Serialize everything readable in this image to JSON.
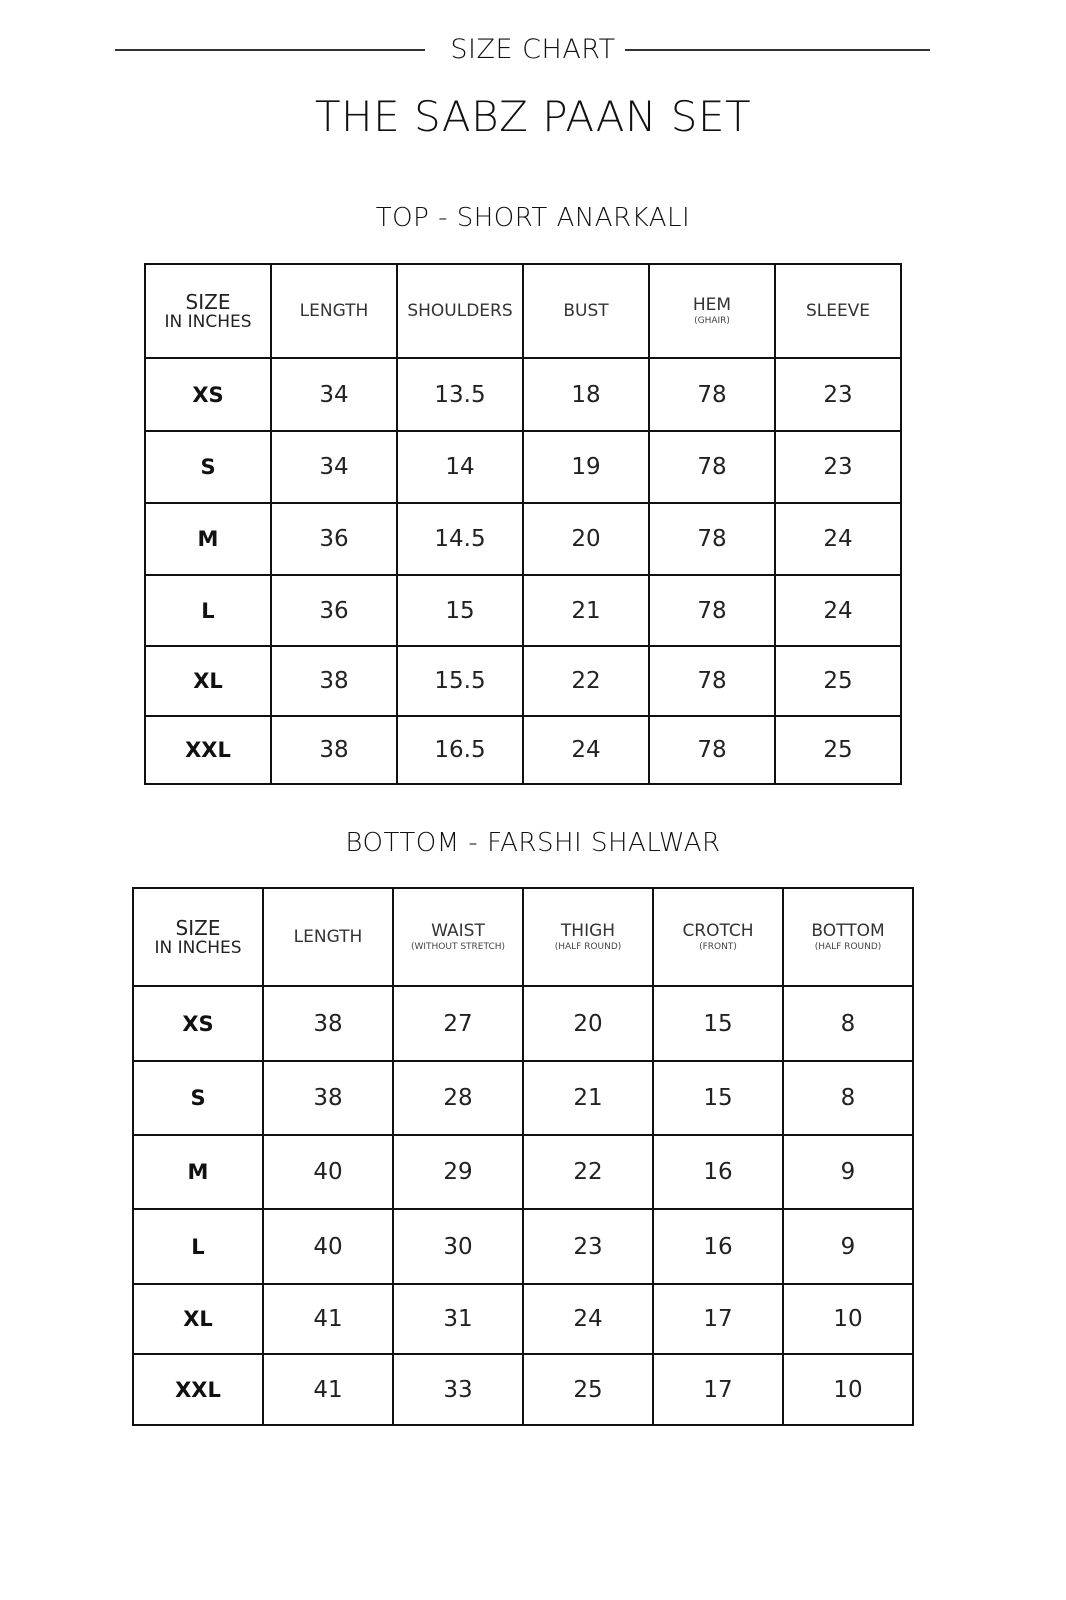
{
  "header": {
    "label": "SIZE CHART",
    "title": "THE SABZ PAAN SET"
  },
  "tables": [
    {
      "title": "TOP - SHORT ANARKALI",
      "size_header": "SIZE",
      "size_sub": "IN INCHES",
      "columns": [
        {
          "label": "LENGTH",
          "sub": ""
        },
        {
          "label": "SHOULDERS",
          "sub": ""
        },
        {
          "label": "BUST",
          "sub": ""
        },
        {
          "label": "HEM",
          "sub": "(GHAIR)"
        },
        {
          "label": "SLEEVE",
          "sub": ""
        }
      ],
      "rows": [
        {
          "size": "XS",
          "values": [
            "34",
            "13.5",
            "18",
            "78",
            "23"
          ]
        },
        {
          "size": "S",
          "values": [
            "34",
            "14",
            "19",
            "78",
            "23"
          ]
        },
        {
          "size": "M",
          "values": [
            "36",
            "14.5",
            "20",
            "78",
            "24"
          ]
        },
        {
          "size": "L",
          "values": [
            "36",
            "15",
            "21",
            "78",
            "24"
          ]
        },
        {
          "size": "XL",
          "values": [
            "38",
            "15.5",
            "22",
            "78",
            "25"
          ]
        },
        {
          "size": "XXL",
          "values": [
            "38",
            "16.5",
            "24",
            "78",
            "25"
          ]
        }
      ]
    },
    {
      "title": "BOTTOM - FARSHI SHALWAR",
      "size_header": "SIZE",
      "size_sub": "IN INCHES",
      "columns": [
        {
          "label": "LENGTH",
          "sub": ""
        },
        {
          "label": "WAIST",
          "sub": "(WITHOUT STRETCH)"
        },
        {
          "label": "THIGH",
          "sub": "(HALF ROUND)"
        },
        {
          "label": "CROTCH",
          "sub": "(FRONT)"
        },
        {
          "label": "BOTTOM",
          "sub": "(HALF ROUND)"
        }
      ],
      "rows": [
        {
          "size": "XS",
          "values": [
            "38",
            "27",
            "20",
            "15",
            "8"
          ]
        },
        {
          "size": "S",
          "values": [
            "38",
            "28",
            "21",
            "15",
            "8"
          ]
        },
        {
          "size": "M",
          "values": [
            "40",
            "29",
            "22",
            "16",
            "9"
          ]
        },
        {
          "size": "L",
          "values": [
            "40",
            "30",
            "23",
            "16",
            "9"
          ]
        },
        {
          "size": "XL",
          "values": [
            "41",
            "31",
            "24",
            "17",
            "10"
          ]
        },
        {
          "size": "XXL",
          "values": [
            "41",
            "33",
            "25",
            "17",
            "10"
          ]
        }
      ]
    }
  ]
}
